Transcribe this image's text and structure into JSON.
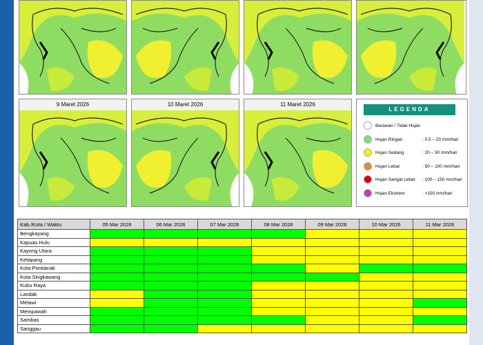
{
  "maps": {
    "titles": [
      "9 Maret 2026",
      "10 Maret 2026",
      "11 Maret 2026"
    ]
  },
  "legend": {
    "title": "LEGENDA",
    "items": [
      {
        "label": "Berawan / Tidak Hujan",
        "range": null,
        "color": "#ffffff"
      },
      {
        "label": "Hujan Ringan",
        "range": ": 0.5 – 20 mm/hari",
        "color": "#7ee07e"
      },
      {
        "label": "Hujan Sedang",
        "range": ": 20 – 50 mm/hari",
        "color": "#f5f500"
      },
      {
        "label": "Hujan Lebat",
        "range": ": 50 – 100 mm/hari",
        "color": "#e8892a"
      },
      {
        "label": "Hujan Sangat Lebat",
        "range": ": 100 – 150 mm/hari",
        "color": "#e00000"
      },
      {
        "label": "Hujan Ekstrem",
        "range": ": >150 mm/hari",
        "color": "#c23fb4"
      }
    ]
  },
  "table": {
    "corner": "Kab./Kota / Waktu",
    "columns": [
      "05 Mar 2026",
      "06 Mar 2026",
      "07 Mar 2026",
      "08 Mar 2026",
      "09 Mar 2026",
      "10 Mar 2026",
      "11 Mar 2026"
    ],
    "rows": [
      {
        "name": "Bengkayang",
        "colors": [
          "#00ff00",
          "#00ff00",
          "#00ff00",
          "#00ff00",
          "#ffff00",
          "#ffff00",
          "#ffff00"
        ]
      },
      {
        "name": "Kapuas Hulu",
        "colors": [
          "#ffff00",
          "#ffff00",
          "#ffff00",
          "#ffff00",
          "#ffff00",
          "#ffff00",
          "#ffff00"
        ]
      },
      {
        "name": "Kayong Utara",
        "colors": [
          "#00ff00",
          "#00ff00",
          "#00ff00",
          "#ffff00",
          "#ffff00",
          "#ffff00",
          "#ffff00"
        ]
      },
      {
        "name": "Ketapang",
        "colors": [
          "#00ff00",
          "#00ff00",
          "#00ff00",
          "#ffff00",
          "#ffff00",
          "#ffff00",
          "#ffff00"
        ]
      },
      {
        "name": "Kota Pontianak",
        "colors": [
          "#00ff00",
          "#00ff00",
          "#00ff00",
          "#00ff00",
          "#ffff00",
          "#00ff00",
          "#00ff00"
        ]
      },
      {
        "name": "Kota Singkawang",
        "colors": [
          "#00ff00",
          "#00ff00",
          "#00ff00",
          "#00ff00",
          "#00ff00",
          "#ffff00",
          "#ffff00"
        ]
      },
      {
        "name": "Kubu Raya",
        "colors": [
          "#00ff00",
          "#00ff00",
          "#00ff00",
          "#ffff00",
          "#ffff00",
          "#ffff00",
          "#ffff00"
        ]
      },
      {
        "name": "Landak",
        "colors": [
          "#ffff00",
          "#00ff00",
          "#00ff00",
          "#ffff00",
          "#ffff00",
          "#ffff00",
          "#ffff00"
        ]
      },
      {
        "name": "Melawi",
        "colors": [
          "#ffff00",
          "#00ff00",
          "#00ff00",
          "#ffff00",
          "#ffff00",
          "#ffff00",
          "#00ff00"
        ]
      },
      {
        "name": "Mempawah",
        "colors": [
          "#00ff00",
          "#00ff00",
          "#00ff00",
          "#ffff00",
          "#ffff00",
          "#ffff00",
          "#ffff00"
        ]
      },
      {
        "name": "Sambas",
        "colors": [
          "#00ff00",
          "#00ff00",
          "#00ff00",
          "#00ff00",
          "#ffff00",
          "#ffff00",
          "#00ff00"
        ]
      },
      {
        "name": "Sanggau",
        "colors": [
          "#00ff00",
          "#00ff00",
          "#ffff00",
          "#ffff00",
          "#ffff00",
          "#ffff00",
          "#ffff00"
        ]
      }
    ]
  }
}
